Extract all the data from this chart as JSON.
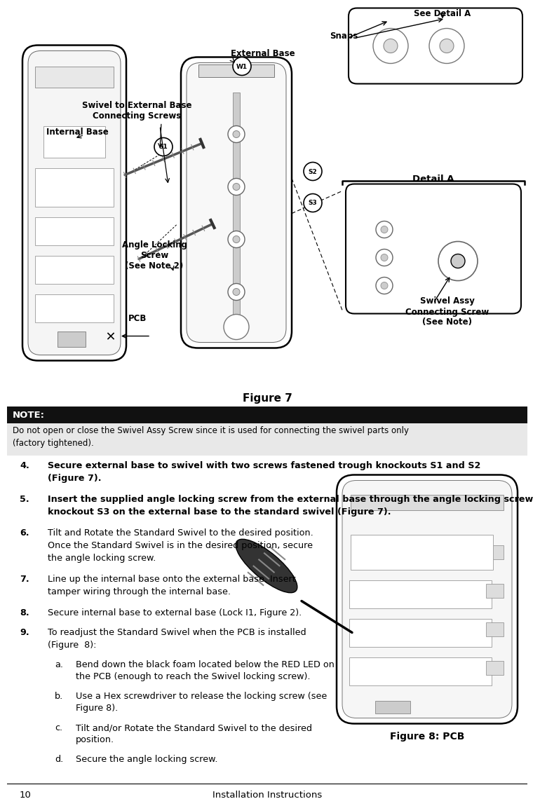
{
  "page_width": 7.42,
  "page_height": 11.3,
  "background_color": "#ffffff",
  "figure7_caption": "Figure 7",
  "figure8_caption": "Figure 8: PCB",
  "page_number": "10",
  "page_footer": "Installation Instructions",
  "note_label": "NOTE:",
  "note_text": "Do not open or close the Swivel Assy Screw since it is used for connecting the swivel parts only\n(factory tightened).",
  "note_bg": "#e8e8e8",
  "note_header_bg": "#111111",
  "note_header_color": "#ffffff",
  "items": [
    {
      "num": "4.",
      "text": "Secure external base to swivel with two screws fastened trough knockouts S1 and S2\n        (Figure 7).",
      "bold": true
    },
    {
      "num": "5.",
      "text": "Insert the supplied angle locking screw from the external base through the angle locking screw\n        knockout S3 on the external base to the standard swivel (Figure 7).",
      "bold": true
    },
    {
      "num": "6.",
      "text": "Tilt and Rotate the Standard Swivel to the desired position.\n        Once the Standard Swivel is in the desired position, secure\n        the angle locking screw.",
      "bold": false
    },
    {
      "num": "7.",
      "text": "Line up the internal base onto the external base. Insert\n        tamper wiring through the internal base.",
      "bold": false
    },
    {
      "num": "8.",
      "text": "Secure internal base to external base (Lock I1, Figure 2).",
      "bold": false
    },
    {
      "num": "9.",
      "text": "To readjust the Standard Swivel when the PCB is installed\n        (Figure  8):",
      "bold": false
    }
  ],
  "sub_items": [
    {
      "letter": "a.",
      "text": "Bend down the black foam located below the RED LED on\n             the PCB (enough to reach the Swivel locking screw)."
    },
    {
      "letter": "b.",
      "text": "Use a Hex screwdriver to release the locking screw (see\n             Figure 8)."
    },
    {
      "letter": "c.",
      "text": "Tilt and/or Rotate the Standard Swivel to the desired\n             position."
    },
    {
      "letter": "d.",
      "text": "Secure the angle locking screw."
    }
  ],
  "diagram_labels": {
    "see_detail_a": "See Detail A",
    "snaps": "Snaps",
    "external_base": "External Base",
    "swivel_connecting": "Swivel to External Base\nConnecting Screws",
    "internal_base": "Internal Base",
    "angle_locking": "Angle Locking\nScrew\n(See Note 2)",
    "pcb": "PCB",
    "swivel_assy": "Swivel Assy\nConnecting Screw\n(See Note)",
    "detail_a": "Detail A"
  }
}
